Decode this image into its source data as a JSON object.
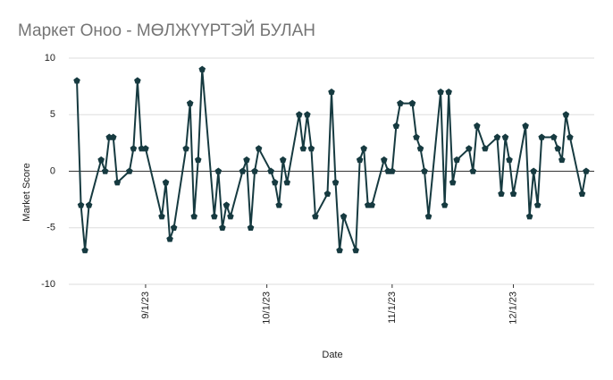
{
  "chart_data": {
    "type": "line",
    "title": "Маркет Оноо - МӨЛЖҮҮРТЭЙ БУЛАН",
    "xlabel": "Date",
    "ylabel": "Market Score",
    "x": [
      "2023-08-15",
      "2023-08-16",
      "2023-08-17",
      "2023-08-18",
      "2023-08-21",
      "2023-08-22",
      "2023-08-23",
      "2023-08-24",
      "2023-08-25",
      "2023-08-28",
      "2023-08-29",
      "2023-08-30",
      "2023-08-31",
      "2023-09-01",
      "2023-09-05",
      "2023-09-06",
      "2023-09-07",
      "2023-09-08",
      "2023-09-11",
      "2023-09-12",
      "2023-09-13",
      "2023-09-14",
      "2023-09-15",
      "2023-09-18",
      "2023-09-19",
      "2023-09-20",
      "2023-09-21",
      "2023-09-22",
      "2023-09-25",
      "2023-09-26",
      "2023-09-27",
      "2023-09-28",
      "2023-09-29",
      "2023-10-02",
      "2023-10-03",
      "2023-10-04",
      "2023-10-05",
      "2023-10-06",
      "2023-10-09",
      "2023-10-10",
      "2023-10-11",
      "2023-10-12",
      "2023-10-13",
      "2023-10-16",
      "2023-10-17",
      "2023-10-18",
      "2023-10-19",
      "2023-10-20",
      "2023-10-23",
      "2023-10-24",
      "2023-10-25",
      "2023-10-26",
      "2023-10-27",
      "2023-10-30",
      "2023-10-31",
      "2023-11-01",
      "2023-11-02",
      "2023-11-03",
      "2023-11-06",
      "2023-11-07",
      "2023-11-08",
      "2023-11-09",
      "2023-11-10",
      "2023-11-13",
      "2023-11-14",
      "2023-11-15",
      "2023-11-16",
      "2023-11-17",
      "2023-11-20",
      "2023-11-21",
      "2023-11-22",
      "2023-11-24",
      "2023-11-27",
      "2023-11-28",
      "2023-11-29",
      "2023-11-30",
      "2023-12-01",
      "2023-12-04",
      "2023-12-05",
      "2023-12-06",
      "2023-12-07",
      "2023-12-08",
      "2023-12-11",
      "2023-12-12",
      "2023-12-13",
      "2023-12-14",
      "2023-12-15",
      "2023-12-18",
      "2023-12-19"
    ],
    "series": [
      {
        "name": "Market Score",
        "color": "#163a40",
        "values": [
          8,
          -3,
          -7,
          -3,
          1,
          0,
          3,
          3,
          -1,
          0,
          2,
          8,
          2,
          2,
          -4,
          -1,
          -6,
          -5,
          2,
          6,
          -4,
          1,
          9,
          -4,
          0,
          -5,
          -3,
          -4,
          0,
          1,
          -5,
          0,
          2,
          0,
          -1,
          -3,
          1,
          -1,
          5,
          2,
          5,
          2,
          -4,
          -2,
          7,
          -1,
          -7,
          -4,
          -7,
          1,
          2,
          -3,
          -3,
          1,
          0,
          0,
          4,
          6,
          6,
          3,
          2,
          0,
          -4,
          7,
          -3,
          7,
          -1,
          1,
          2,
          0,
          4,
          2,
          3,
          -2,
          3,
          1,
          -2,
          4,
          -4,
          0,
          -3,
          3,
          3,
          2,
          1,
          5,
          3,
          -2,
          0
        ]
      }
    ],
    "xlim": [
      "2023-08-13",
      "2023-12-21"
    ],
    "xticks": [
      {
        "value": "2023-09-01",
        "label": "9/1/23"
      },
      {
        "value": "2023-10-01",
        "label": "10/1/23"
      },
      {
        "value": "2023-11-01",
        "label": "11/1/23"
      },
      {
        "value": "2023-12-01",
        "label": "12/1/23"
      }
    ],
    "ylim": [
      -10,
      10
    ],
    "yticks": [
      -10,
      -5,
      0,
      5,
      10
    ],
    "grid": true
  }
}
